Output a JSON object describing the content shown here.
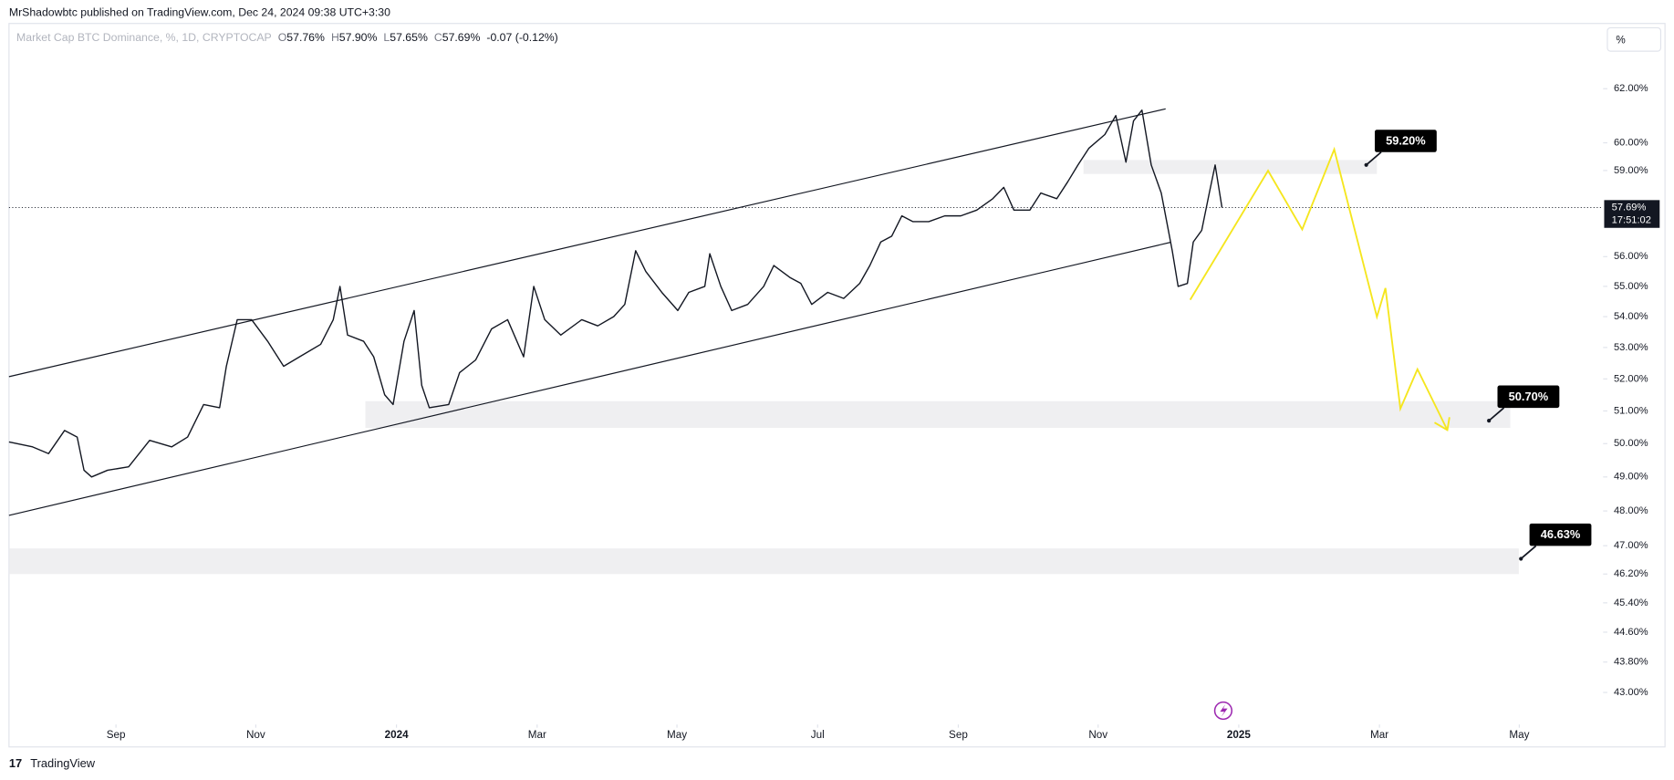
{
  "header": {
    "published": "MrShadowbtc published on TradingView.com, Dec 24, 2024 09:38 UTC+3:30",
    "symbol": "Market Cap BTC Dominance, %, 1D, CRYPTOCAP",
    "ohlc": [
      {
        "label": "O",
        "value": "57.76%"
      },
      {
        "label": "H",
        "value": "57.90%"
      },
      {
        "label": "L",
        "value": "57.65%"
      },
      {
        "label": "C",
        "value": "57.69%"
      }
    ],
    "change": "-0.07 (-0.12%)"
  },
  "scale_button": "%",
  "footer": "TradingView",
  "chart_data": {
    "type": "line",
    "color": "#131722",
    "log": true,
    "x": [
      2023.54,
      2023.568,
      2023.587,
      2023.606,
      2023.621,
      2023.629,
      2023.638,
      2023.657,
      2023.682,
      2023.707,
      2023.733,
      2023.752,
      2023.771,
      2023.79,
      2023.798,
      2023.811,
      2023.828,
      2023.847,
      2023.866,
      2023.885,
      2023.91,
      2023.925,
      2023.933,
      2023.942,
      2023.961,
      2023.973,
      2023.986,
      2023.996,
      2024.009,
      2024.021,
      2024.03,
      2024.039,
      2024.062,
      2024.075,
      2024.094,
      2024.113,
      2024.132,
      2024.151,
      2024.163,
      2024.176,
      2024.195,
      2024.22,
      2024.239,
      2024.258,
      2024.271,
      2024.284,
      2024.296,
      2024.315,
      2024.334,
      2024.347,
      2024.366,
      2024.372,
      2024.385,
      2024.398,
      2024.417,
      2024.436,
      2024.448,
      2024.467,
      2024.48,
      2024.493,
      2024.512,
      2024.531,
      2024.55,
      2024.562,
      2024.575,
      2024.588,
      2024.6,
      2024.613,
      2024.632,
      2024.651,
      2024.67,
      2024.689,
      2024.708,
      2024.721,
      2024.733,
      2024.752,
      2024.765,
      2024.784,
      2024.797,
      2024.809,
      2024.822,
      2024.841,
      2024.854,
      2024.866,
      2024.875,
      2024.885,
      2024.896,
      2024.908,
      2024.921,
      2024.928,
      2024.939,
      2024.946,
      2024.956,
      2024.965,
      2024.972,
      2024.98
    ],
    "values": [
      50.05,
      49.9,
      49.7,
      50.4,
      50.2,
      49.2,
      49.0,
      49.2,
      49.3,
      50.1,
      49.9,
      50.2,
      51.2,
      51.1,
      52.4,
      53.9,
      53.9,
      53.2,
      52.4,
      52.7,
      53.1,
      53.9,
      55.0,
      53.4,
      53.2,
      52.7,
      51.5,
      51.2,
      53.2,
      54.2,
      51.8,
      51.1,
      51.2,
      52.2,
      52.6,
      53.6,
      53.9,
      52.7,
      55.0,
      53.9,
      53.4,
      53.9,
      53.7,
      54.0,
      54.4,
      56.2,
      55.5,
      54.8,
      54.2,
      54.8,
      55.0,
      56.1,
      55.0,
      54.2,
      54.4,
      55.0,
      55.7,
      55.3,
      55.1,
      54.4,
      54.8,
      54.6,
      55.1,
      55.7,
      56.5,
      56.7,
      57.4,
      57.2,
      57.2,
      57.4,
      57.4,
      57.6,
      58.0,
      58.4,
      57.6,
      57.6,
      58.2,
      58.0,
      58.6,
      59.2,
      59.8,
      60.3,
      61.0,
      59.3,
      60.8,
      61.2,
      59.2,
      58.2,
      56.2,
      55.0,
      55.1,
      56.5,
      56.9,
      58.2,
      59.2,
      57.69
    ],
    "xlim": [
      2023.54,
      2025.43
    ],
    "xticks": [
      {
        "value": 2023.667,
        "label": "Sep"
      },
      {
        "value": 2023.833,
        "label": "Nov"
      },
      2024,
      {
        "value": 2024.167,
        "label": "Mar"
      },
      {
        "value": 2024.333,
        "label": "May"
      },
      {
        "value": 2024.5,
        "label": "Jul"
      },
      {
        "value": 2024.667,
        "label": "Sep"
      },
      {
        "value": 2024.833,
        "label": "Nov"
      },
      2025,
      {
        "value": 2025.167,
        "label": "Mar"
      },
      {
        "value": 2025.333,
        "label": "May"
      }
    ],
    "ylim": [
      42.2,
      64.5
    ],
    "yticks": [
      {
        "value": 62,
        "label": "62.00%"
      },
      {
        "value": 60,
        "label": "60.00%"
      },
      {
        "value": 59,
        "label": "59.00%"
      },
      {
        "value": 56,
        "label": "56.00%"
      },
      {
        "value": 55,
        "label": "55.00%"
      },
      {
        "value": 54,
        "label": "54.00%"
      },
      {
        "value": 53,
        "label": "53.00%"
      },
      {
        "value": 52,
        "label": "52.00%"
      },
      {
        "value": 51,
        "label": "51.00%"
      },
      {
        "value": 50,
        "label": "50.00%"
      },
      {
        "value": 49,
        "label": "49.00%"
      },
      {
        "value": 48,
        "label": "48.00%"
      },
      {
        "value": 47,
        "label": "47.00%"
      },
      {
        "value": 46.2,
        "label": "46.20%"
      },
      {
        "value": 45.4,
        "label": "45.40%"
      },
      {
        "value": 44.6,
        "label": "44.60%"
      },
      {
        "value": 43.8,
        "label": "43.80%"
      },
      {
        "value": 43,
        "label": "43.00%"
      }
    ],
    "last_price": {
      "value": 57.69,
      "label": "57.69%"
    },
    "countdown": "17:51:02",
    "annotations": [
      {
        "value": 59.2,
        "label": "59.20%"
      },
      {
        "value": 50.7,
        "label": "50.70%"
      },
      {
        "value": 46.63,
        "label": "46.63%"
      }
    ]
  }
}
